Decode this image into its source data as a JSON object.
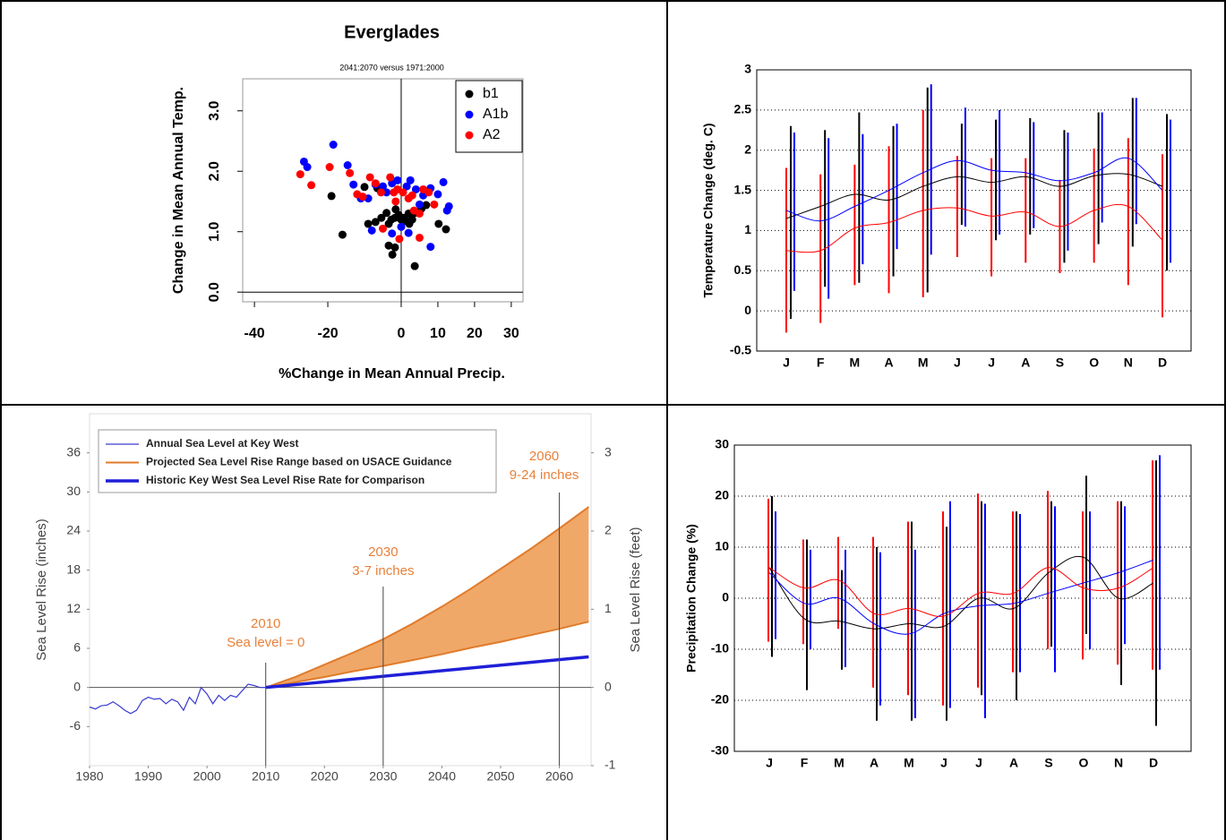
{
  "chart_data": [
    {
      "type": "scatter",
      "title": "Everglades",
      "subtitle": "2041:2070 versus 1971:2000",
      "xlabel": "%Change in Mean Annual Precip.",
      "ylabel": "Change in Mean Annual Temp.",
      "xlim": [
        -43.2,
        33.2
      ],
      "ylim": [
        -0.16,
        3.53
      ],
      "xticks": [
        -40,
        -20,
        0,
        10,
        20,
        30
      ],
      "yticks": [
        {
          "value": 0,
          "label": "0.0"
        },
        {
          "value": 1,
          "label": "1.0"
        },
        {
          "value": 2,
          "label": "2.0"
        },
        {
          "value": 3,
          "label": "3.0"
        }
      ],
      "legend": "top-right",
      "series": [
        {
          "name": "b1",
          "color": "#000000",
          "x": [
            -19,
            -16,
            -9,
            -7,
            -5.4,
            -4,
            -3.4,
            -2.7,
            -1.7,
            -0.7,
            0,
            0.7,
            1.5,
            2.2,
            3,
            3.7,
            -3.4,
            -1.7,
            -2.4,
            3.7,
            6.8,
            10.2,
            12.2,
            -6.5,
            -1.5,
            2,
            5.5,
            -10
          ],
          "y": [
            1.59,
            0.95,
            1.13,
            1.16,
            1.23,
            1.31,
            1.13,
            1.2,
            1.23,
            1.28,
            1.2,
            1.23,
            1.17,
            1.13,
            1.2,
            1.31,
            0.77,
            0.74,
            0.62,
            0.43,
            1.44,
            1.13,
            1.04,
            1.72,
            1.37,
            1.3,
            1.38,
            1.74
          ]
        },
        {
          "name": "A1b",
          "color": "#0000ff",
          "x": [
            -26.5,
            -25.6,
            -18.5,
            -14.6,
            -13,
            -11,
            -9,
            -7,
            -5,
            -4,
            -2.5,
            -1,
            1.5,
            2.5,
            4,
            6,
            8,
            10,
            11.5,
            13,
            12.5,
            -2.5,
            2,
            8,
            0,
            5,
            -8
          ],
          "y": [
            2.16,
            2.07,
            2.44,
            2.1,
            1.78,
            1.55,
            1.55,
            1.78,
            1.75,
            1.65,
            1.8,
            1.85,
            1.75,
            1.85,
            1.7,
            1.6,
            1.72,
            1.62,
            1.82,
            1.42,
            1.35,
            0.97,
            0.98,
            0.75,
            1.08,
            1.45,
            1.02
          ]
        },
        {
          "name": "A2",
          "color": "#ff0000",
          "x": [
            -27.5,
            -24.5,
            -19.5,
            -14,
            -12,
            -10.5,
            -8.5,
            -7,
            -5.5,
            -3,
            -2,
            -1,
            0.5,
            2,
            3.5,
            5,
            6,
            7.5,
            9,
            -5,
            -0.5,
            5,
            3,
            -1.5
          ],
          "y": [
            1.95,
            1.77,
            2.07,
            1.97,
            1.62,
            1.58,
            1.9,
            1.8,
            1.65,
            1.9,
            1.65,
            1.7,
            1.65,
            1.55,
            1.35,
            1.3,
            1.7,
            1.65,
            1.45,
            1.05,
            0.88,
            0.9,
            1.6,
            1.5
          ]
        }
      ]
    },
    {
      "type": "line",
      "ylabel": "Temperature Change (deg. C)",
      "categories": [
        "J",
        "F",
        "M",
        "A",
        "M",
        "J",
        "J",
        "A",
        "S",
        "O",
        "N",
        "D"
      ],
      "ylim": [
        -0.5,
        3
      ],
      "yticks": [
        -0.5,
        0,
        0.5,
        1,
        1.5,
        2,
        2.5,
        3
      ],
      "grid": true,
      "series": [
        {
          "color": "#000000",
          "values": [
            1.15,
            1.3,
            1.45,
            1.38,
            1.55,
            1.67,
            1.6,
            1.67,
            1.55,
            1.68,
            1.7,
            1.55
          ],
          "low": [
            -0.1,
            0.3,
            0.35,
            0.43,
            0.23,
            1.07,
            0.88,
            0.95,
            0.6,
            0.83,
            0.8,
            0.5
          ],
          "high": [
            2.3,
            2.25,
            2.47,
            2.3,
            2.78,
            2.33,
            2.38,
            2.4,
            2.25,
            2.47,
            2.65,
            2.45
          ]
        },
        {
          "color": "#0000ff",
          "values": [
            1.25,
            1.12,
            1.3,
            1.5,
            1.72,
            1.87,
            1.75,
            1.72,
            1.62,
            1.72,
            1.9,
            1.5
          ],
          "low": [
            0.25,
            0.15,
            0.58,
            0.77,
            0.7,
            1.05,
            0.95,
            1.03,
            0.75,
            1.1,
            1.08,
            0.6
          ],
          "high": [
            2.22,
            2.15,
            2.2,
            2.33,
            2.82,
            2.53,
            2.5,
            2.35,
            2.22,
            2.47,
            2.65,
            2.38
          ]
        },
        {
          "color": "#ff0000",
          "values": [
            0.75,
            0.75,
            1.03,
            1.1,
            1.25,
            1.28,
            1.18,
            1.23,
            1.05,
            1.25,
            1.3,
            0.88
          ],
          "low": [
            -0.27,
            -0.15,
            0.32,
            0.22,
            0.17,
            0.67,
            0.43,
            0.6,
            0.47,
            0.6,
            0.32,
            -0.08
          ],
          "high": [
            1.78,
            1.7,
            1.82,
            2.05,
            2.5,
            1.93,
            1.9,
            1.9,
            1.63,
            2.02,
            2.15,
            1.95
          ]
        }
      ]
    },
    {
      "type": "area",
      "ylabel": "Sea Level Rise (inches)",
      "y2label": "Sea Level Rise (feet)",
      "xlim": [
        1980,
        2065.4
      ],
      "ylim": [
        -12,
        42
      ],
      "y2lim": [
        -1,
        3.5
      ],
      "xticks": [
        1980,
        1990,
        2000,
        2010,
        2020,
        2030,
        2040,
        2050,
        2060
      ],
      "yticks": [
        -6,
        0,
        6,
        12,
        18,
        24,
        30,
        36
      ],
      "y2ticks": [
        -1,
        0,
        1,
        2,
        3
      ],
      "annotation_color": "#e8803a",
      "annotations": [
        {
          "x": 2010,
          "label": "2010",
          "text": "Sea level = 0"
        },
        {
          "x": 2030,
          "label": "2030",
          "text": "3-7 inches"
        },
        {
          "x": 2060,
          "label": "2060",
          "text": "9-24 inches"
        }
      ],
      "series": [
        {
          "name": "Annual Sea Level at Key West",
          "color": "#3a3ad0",
          "line_width": 1.2,
          "x": [
            1980,
            1981,
            1982,
            1983,
            1984,
            1985,
            1986,
            1987,
            1988,
            1989,
            1990,
            1991,
            1992,
            1993,
            1994,
            1995,
            1996,
            1997,
            1998,
            1999,
            2000,
            2001,
            2002,
            2003,
            2004,
            2005,
            2006,
            2007,
            2008,
            2009,
            2010
          ],
          "values": [
            -3,
            -3.3,
            -2.8,
            -2.7,
            -2.2,
            -2.8,
            -3.5,
            -4,
            -3.5,
            -2,
            -1.5,
            -1.8,
            -1.7,
            -2.5,
            -1.8,
            -2.2,
            -3.5,
            -1.5,
            -2.5,
            0,
            -1,
            -2.5,
            -1.2,
            -2,
            -1.2,
            -1.5,
            -0.5,
            0.5,
            0.3,
            0,
            0
          ]
        },
        {
          "name": "Projected Sea Level Rise Range based on USACE Guidance",
          "color": "#e07b2b",
          "line_width": 2,
          "x": [
            2010,
            2015,
            2020,
            2025,
            2030,
            2035,
            2040,
            2045,
            2050,
            2055,
            2060,
            2065
          ],
          "low": [
            0,
            0.8,
            1.6,
            2.5,
            3.3,
            4.2,
            5.1,
            6.1,
            7,
            8,
            9,
            10.1
          ],
          "high": [
            0,
            1.6,
            3.5,
            5.4,
            7.4,
            9.8,
            12.4,
            15.2,
            18.2,
            21.2,
            24.4,
            27.7
          ]
        },
        {
          "name": "Historic Key West Sea Level Rise Rate for Comparison",
          "color": "#1f1fd8",
          "line_width": 3.5,
          "x": [
            2010,
            2065
          ],
          "values": [
            0,
            4.7
          ]
        }
      ]
    },
    {
      "type": "line",
      "ylabel": "Precipitation Change (%)",
      "categories": [
        "J",
        "F",
        "M",
        "A",
        "M",
        "J",
        "J",
        "A",
        "S",
        "O",
        "N",
        "D"
      ],
      "ylim": [
        -30,
        30
      ],
      "yticks": [
        -30,
        -20,
        -10,
        0,
        10,
        20,
        30
      ],
      "grid": true,
      "series": [
        {
          "color": "#000000",
          "values": [
            6,
            -4,
            -4.5,
            -6,
            -5,
            -5.5,
            0,
            -2,
            5,
            8,
            0,
            3
          ],
          "low": [
            -11.5,
            -18,
            -14,
            -24,
            -24,
            -24,
            -19,
            -20,
            -9.5,
            -7,
            -17,
            -25
          ],
          "high": [
            20,
            11.5,
            5.5,
            10,
            15,
            14,
            19,
            17,
            19,
            24,
            19,
            27
          ]
        },
        {
          "color": "#0000ff",
          "values": [
            5,
            -1,
            0,
            -5,
            -7,
            -3,
            -1.5,
            -1,
            1,
            3,
            5,
            7.5
          ],
          "low": [
            -8,
            -10,
            -13.5,
            -21,
            -23.5,
            -21.5,
            -23.5,
            -14.5,
            -14.5,
            -10,
            -9,
            -14
          ],
          "high": [
            17,
            9.5,
            9.5,
            9,
            9.5,
            19,
            18.5,
            16.5,
            18,
            17,
            18,
            28
          ]
        },
        {
          "color": "#ff0000",
          "values": [
            6,
            2,
            3.5,
            -3,
            -2,
            -3.5,
            1,
            1,
            6,
            2,
            2,
            6
          ],
          "low": [
            -8.5,
            -9,
            -6,
            -17.5,
            -19,
            -21,
            -17.5,
            -14.5,
            -10,
            -12,
            -13,
            -14
          ],
          "high": [
            19.5,
            11.5,
            12,
            12,
            15,
            17,
            20.5,
            17,
            21,
            17,
            19,
            27
          ]
        }
      ]
    }
  ]
}
